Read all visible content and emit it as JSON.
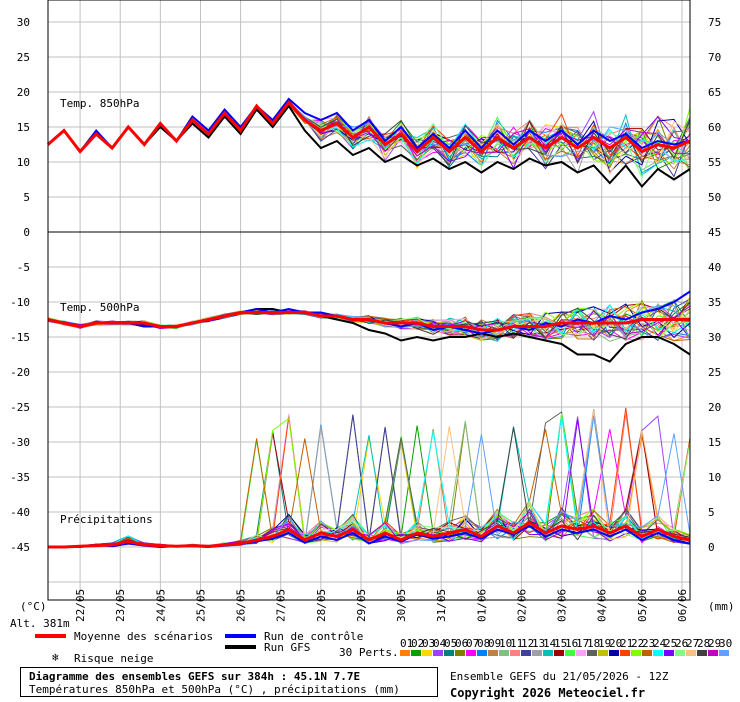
{
  "chart_data": {
    "type": "line",
    "unit_left": "(°C)",
    "unit_right": "(mm)",
    "altitude": "Alt. 381m",
    "x_dates": [
      "22/05",
      "23/05",
      "24/05",
      "25/05",
      "26/05",
      "27/05",
      "28/05",
      "29/05",
      "30/05",
      "31/05",
      "01/06",
      "02/06",
      "03/06",
      "04/06",
      "05/06",
      "06/06"
    ],
    "upper_panel": {
      "label": "Temp. 850hPa",
      "left_ticks": [
        "30",
        "25",
        "20",
        "15",
        "10",
        "5",
        "0"
      ],
      "right_ticks": [
        "75",
        "70",
        "65",
        "60",
        "55",
        "50"
      ],
      "ylim": [
        0,
        30
      ],
      "mean": [
        12.5,
        14.5,
        11.5,
        14,
        12,
        15,
        12.5,
        15.5,
        13,
        16,
        14,
        17,
        14.5,
        18,
        15.5,
        18.5,
        16,
        14.5,
        15.5,
        13.5,
        15,
        12.5,
        14,
        11.5,
        13.5,
        11.5,
        13.5,
        11.5,
        13.5,
        12,
        13.5,
        12,
        13.5,
        12,
        13.5,
        12,
        13.5,
        11.5,
        12.5,
        12,
        13
      ],
      "control": [
        12.5,
        14.5,
        11.5,
        14.5,
        12,
        15,
        12.5,
        15.5,
        13,
        16.5,
        14.5,
        17.5,
        15,
        18,
        16,
        19,
        17,
        16,
        17,
        14.5,
        16,
        13,
        15,
        12,
        14,
        12,
        14.5,
        12,
        14.5,
        12.5,
        14.5,
        13,
        14.5,
        12.5,
        14.5,
        13,
        14,
        12,
        13,
        12.5,
        13
      ],
      "gfs": [
        12.5,
        14.5,
        11.5,
        14,
        12,
        15,
        12.5,
        15,
        13,
        15.5,
        13.5,
        16.5,
        14,
        17.5,
        15,
        18,
        14.5,
        12,
        13,
        11,
        12,
        10,
        11,
        9.5,
        10.5,
        9,
        10,
        8.5,
        10,
        9,
        10.5,
        9.5,
        10,
        8.5,
        9.5,
        7,
        9.5,
        6.5,
        9,
        7.5,
        9
      ]
    },
    "lower_panel": {
      "label": "Temp. 500hPa",
      "left_ticks": [
        "-5",
        "-10",
        "-15",
        "-20",
        "-25",
        "-30",
        "-35",
        "-40",
        "-45"
      ],
      "right_ticks": [
        "45",
        "40",
        "35",
        "30",
        "25",
        "20",
        "15",
        "10",
        "5",
        "0"
      ],
      "ylim": [
        -50,
        0
      ],
      "mean": [
        -12.5,
        -13,
        -13.5,
        -13,
        -13,
        -13,
        -13,
        -13.5,
        -13.5,
        -13,
        -12.5,
        -12,
        -11.5,
        -11.5,
        -11.5,
        -11.5,
        -11.5,
        -12,
        -12,
        -12.5,
        -12.5,
        -13,
        -13,
        -13,
        -13.5,
        -13.5,
        -13.5,
        -14,
        -14,
        -13.5,
        -13.5,
        -13.5,
        -13,
        -13,
        -13,
        -13,
        -13,
        -12.5,
        -12.5,
        -12.5,
        -12.5
      ],
      "control": [
        -12.5,
        -13,
        -13.5,
        -13,
        -13,
        -13,
        -13.5,
        -13.5,
        -13.5,
        -13,
        -12.5,
        -12,
        -11.5,
        -11,
        -11.5,
        -11,
        -11.5,
        -11.5,
        -12,
        -12.5,
        -12.5,
        -13,
        -13.5,
        -13,
        -14,
        -13.5,
        -14,
        -14.5,
        -14,
        -13.5,
        -14,
        -13,
        -13.5,
        -12.5,
        -13,
        -12,
        -12.5,
        -11.5,
        -11,
        -10,
        -8.5
      ],
      "gfs": [
        -12.5,
        -13,
        -13.5,
        -13,
        -13,
        -13,
        -13.5,
        -13.5,
        -13.5,
        -13,
        -12.5,
        -12,
        -11.5,
        -11,
        -11,
        -11.5,
        -11.5,
        -12,
        -12.5,
        -13,
        -14,
        -14.5,
        -15.5,
        -15,
        -15.5,
        -15,
        -15,
        -14.5,
        -15,
        -14.5,
        -15,
        -15.5,
        -16,
        -17.5,
        -17.5,
        -18.5,
        -16,
        -15,
        -15,
        -16,
        -17.5
      ]
    },
    "precip_panel": {
      "label": "Précipitations",
      "mm_ticks": [
        "45",
        "40",
        "35",
        "30",
        "25",
        "20",
        "15",
        "10",
        "5",
        "0"
      ],
      "mean_mm": [
        0,
        0,
        0.1,
        0.2,
        0.3,
        0.8,
        0.3,
        0.2,
        0.1,
        0.2,
        0.1,
        0.3,
        0.5,
        1,
        1.5,
        2.5,
        1,
        2,
        1.5,
        2.5,
        1,
        2,
        1,
        2,
        1.5,
        2,
        2.5,
        1.5,
        3,
        2,
        3.5,
        2,
        3,
        2.5,
        3,
        2,
        3,
        1.5,
        2.5,
        1.5,
        1
      ],
      "control_mm": [
        0,
        0,
        0,
        0.3,
        0.1,
        0.5,
        0.2,
        0,
        0.1,
        0.1,
        0,
        0.2,
        0.4,
        0.8,
        1.2,
        2,
        0.6,
        1.5,
        1,
        2,
        0.5,
        1.5,
        0.8,
        1.8,
        1.2,
        1.5,
        2,
        1.2,
        2.5,
        1.8,
        3,
        1.5,
        2.5,
        2,
        2.5,
        1.5,
        2.5,
        1,
        2,
        1,
        0.5
      ]
    },
    "legend": {
      "mean": "Moyenne des scénarios",
      "control": "Run de contrôle",
      "gfs": "Run GFS",
      "snow": "Risque neige",
      "perts": "30 Perts."
    },
    "colors": {
      "mean": "#ff0000",
      "control": "#0000ff",
      "gfs": "#000000",
      "grid": "#c0c0c0",
      "perts": [
        "#ff7f00",
        "#00a000",
        "#ffd700",
        "#a040ff",
        "#008080",
        "#808000",
        "#ff00ff",
        "#0080ff",
        "#c08040",
        "#80c080",
        "#ff8080",
        "#4040a0",
        "#a0a0a0",
        "#00c0c0",
        "#a00000",
        "#40ff40",
        "#ffa0ff",
        "#606060",
        "#c0c000",
        "#0000a0",
        "#ff4000",
        "#80ff00",
        "#c06000",
        "#00ffff",
        "#8000ff",
        "#80ff80",
        "#ffc080",
        "#404040",
        "#c000c0",
        "#60a0ff"
      ]
    },
    "pert_ids": [
      "01",
      "02",
      "03",
      "04",
      "05",
      "06",
      "07",
      "08",
      "09",
      "10",
      "11",
      "12",
      "13",
      "14",
      "15",
      "16",
      "17",
      "18",
      "19",
      "20",
      "21",
      "22",
      "23",
      "24",
      "25",
      "26",
      "27",
      "28",
      "29",
      "30"
    ]
  },
  "footer": {
    "title": "Diagramme des ensembles GEFS sur 384h : 45.1N 7.7E",
    "subtitle": "Températures 850hPa et 500hPa (°C) , précipitations (mm)",
    "run": "Ensemble GEFS du 21/05/2026 - 12Z",
    "copyright": "Copyright 2026 Meteociel.fr"
  }
}
